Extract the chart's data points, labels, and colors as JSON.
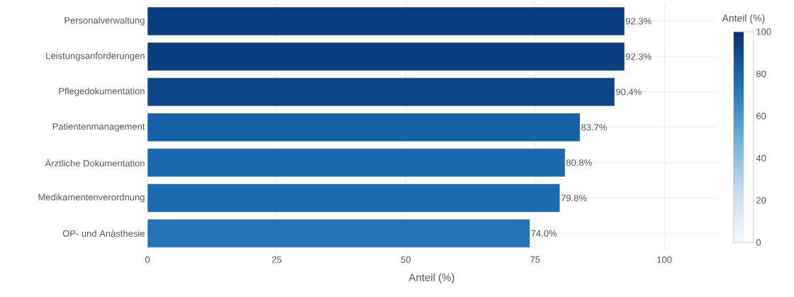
{
  "chart_data": {
    "type": "bar",
    "orientation": "horizontal",
    "xlabel": "Anteil (%)",
    "clabel": "Anteil (%)",
    "categories": [
      "Personalverwaltung",
      "Leistungsanforderungen",
      "Pflegedokumentation",
      "Patientenmanagement",
      "Ärztliche Dokumentation",
      "Medikamentenverordnung",
      "OP- und Anästhesie"
    ],
    "values": [
      92.3,
      92.3,
      90.4,
      83.7,
      80.8,
      79.8,
      74.0
    ],
    "value_labels": [
      "92.3%",
      "92.3%",
      "90.4%",
      "83.7%",
      "80.8%",
      "79.8%",
      "74.0%"
    ],
    "colors": [
      "#0b3e80",
      "#0b3e80",
      "#0d4589",
      "#1660a8",
      "#1a68ae",
      "#1c6aaf",
      "#2474b7"
    ],
    "xlim": [
      0,
      110
    ],
    "xticks": [
      0,
      25,
      50,
      75,
      100
    ],
    "clim": [
      0,
      100
    ],
    "cticks": [
      0,
      20,
      40,
      60,
      80,
      100
    ],
    "grid": true
  }
}
